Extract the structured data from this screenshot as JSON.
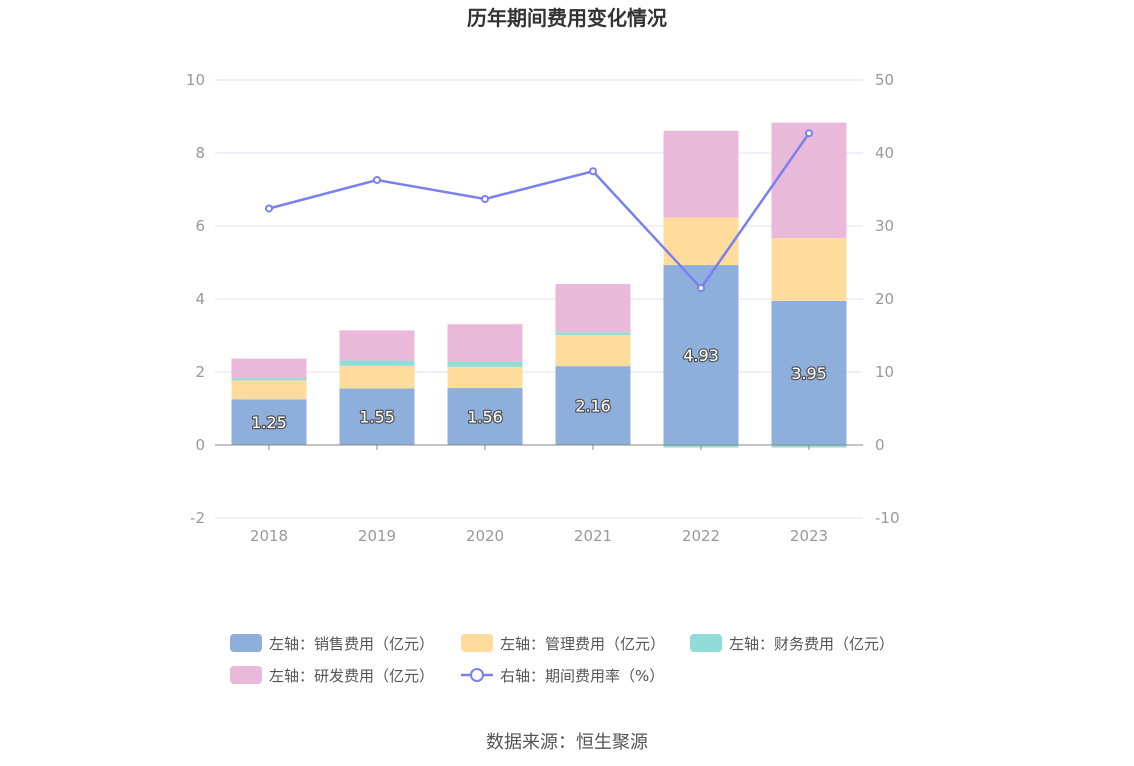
{
  "source_text": "数据来源：恒生聚源",
  "chart_data": {
    "type": "bar",
    "title": "历年期间费用变化情况",
    "categories": [
      "2018",
      "2019",
      "2020",
      "2021",
      "2022",
      "2023"
    ],
    "stacked": true,
    "y_left": {
      "ylim": [
        -2,
        10
      ],
      "ticks": [
        -2,
        0,
        2,
        4,
        6,
        8,
        10
      ]
    },
    "y_right": {
      "ylim": [
        -10,
        50
      ],
      "ticks": [
        -10,
        0,
        10,
        20,
        30,
        40,
        50
      ]
    },
    "grid": true,
    "legend_position": "bottom",
    "series": [
      {
        "name": "左轴：销售费用（亿元）",
        "type": "bar",
        "axis": "left",
        "color": "#8eaedc",
        "values": [
          1.25,
          1.55,
          1.56,
          2.16,
          4.93,
          3.95
        ],
        "data_labels": [
          "1.25",
          "1.55",
          "1.56",
          "2.16",
          "4.93",
          "3.95"
        ]
      },
      {
        "name": "左轴：管理费用（亿元）",
        "type": "bar",
        "axis": "left",
        "color": "#ffdb9c",
        "values": [
          0.52,
          0.62,
          0.58,
          0.85,
          1.3,
          1.72
        ]
      },
      {
        "name": "左轴：财务费用（亿元）",
        "type": "bar",
        "axis": "left",
        "color": "#8fdcd8",
        "values": [
          0.06,
          0.15,
          0.15,
          0.08,
          -0.07,
          -0.07
        ]
      },
      {
        "name": "左轴：研发费用（亿元）",
        "type": "bar",
        "axis": "left",
        "color": "#e8b9d9",
        "values": [
          0.54,
          0.82,
          1.02,
          1.32,
          2.38,
          3.16
        ]
      },
      {
        "name": "右轴：期间费用率（%）",
        "type": "line",
        "axis": "right",
        "color": "#7b80f0",
        "values": [
          32.4,
          36.3,
          33.7,
          37.5,
          21.5,
          42.7
        ]
      }
    ]
  }
}
